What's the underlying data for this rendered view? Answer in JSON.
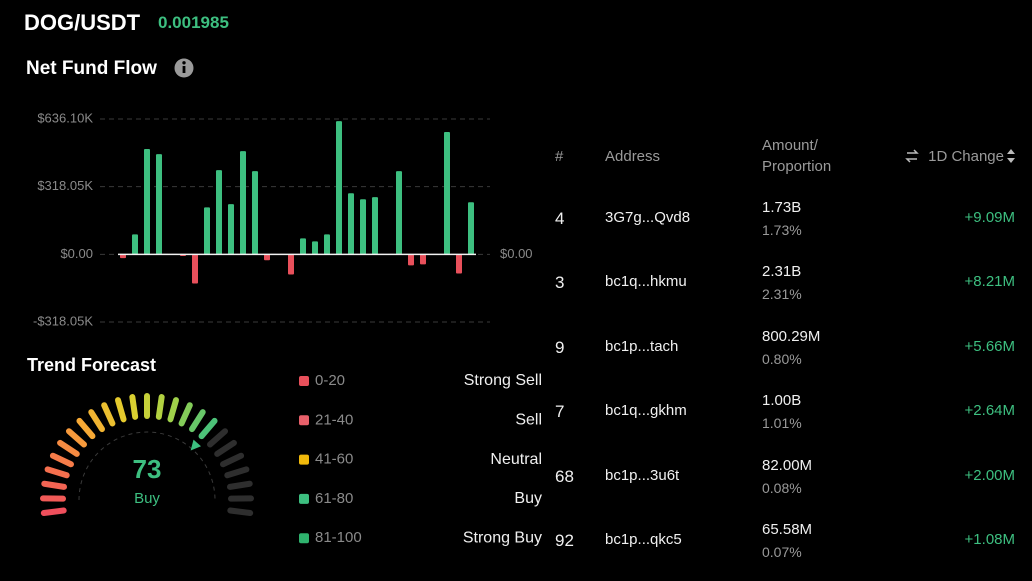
{
  "header": {
    "pair": "DOG/USDT",
    "price": "0.001985"
  },
  "fund_flow_title": "Net Fund Flow",
  "chart_data": {
    "type": "bar",
    "values": [
      -18000,
      94000,
      495000,
      471000,
      0,
      -8000,
      -137000,
      221000,
      396000,
      236000,
      485000,
      391000,
      -28000,
      0,
      -95000,
      75000,
      61000,
      94000,
      626000,
      287000,
      259000,
      269000,
      0,
      391000,
      -52000,
      -47000,
      0,
      575000,
      -90000,
      245000
    ],
    "positive_color": "#3dbf80",
    "negative_color": "#e8505b",
    "ylim": [
      -318050,
      636100
    ],
    "yticks": [
      {
        "value": 636100,
        "label": "$636.10K"
      },
      {
        "value": 318050,
        "label": "$318.05K"
      },
      {
        "value": 0,
        "label": "$0.00"
      },
      {
        "value": -318050,
        "label": "-$318.05K"
      }
    ],
    "y2lim": [
      -318050,
      636100
    ],
    "y2ticks": [
      {
        "value": 0,
        "label": "$0.00"
      }
    ],
    "grid": true
  },
  "trend": {
    "title": "Trend Forecast",
    "value": 73,
    "label": "Buy",
    "range": [
      0,
      100
    ],
    "color": "#3dbf80",
    "legend": [
      {
        "range": "0-20",
        "label": "Strong Sell",
        "color": "#e8505b"
      },
      {
        "range": "21-40",
        "label": "Sell",
        "color": "#e8606a"
      },
      {
        "range": "41-60",
        "label": "Neutral",
        "color": "#f0b90b"
      },
      {
        "range": "61-80",
        "label": "Buy",
        "color": "#3dbf80"
      },
      {
        "range": "81-100",
        "label": "Strong Buy",
        "color": "#2fb36e"
      }
    ]
  },
  "table": {
    "headers": [
      "#",
      "Address",
      [
        "Amount/",
        "Proportion"
      ],
      "1D Change"
    ],
    "rows": [
      [
        "4",
        "3G7g...Qvd8",
        "1.73B",
        "1.73%",
        "+9.09M"
      ],
      [
        "3",
        "bc1q...hkmu",
        "2.31B",
        "2.31%",
        "+8.21M"
      ],
      [
        "9",
        "bc1p...tach",
        "800.29M",
        "0.80%",
        "+5.66M"
      ],
      [
        "7",
        "bc1q...gkhm",
        "1.00B",
        "1.01%",
        "+2.64M"
      ],
      [
        "68",
        "bc1p...3u6t",
        "82.00M",
        "0.08%",
        "+2.00M"
      ],
      [
        "92",
        "bc1p...qkc5",
        "65.58M",
        "0.07%",
        "+1.08M"
      ]
    ]
  }
}
